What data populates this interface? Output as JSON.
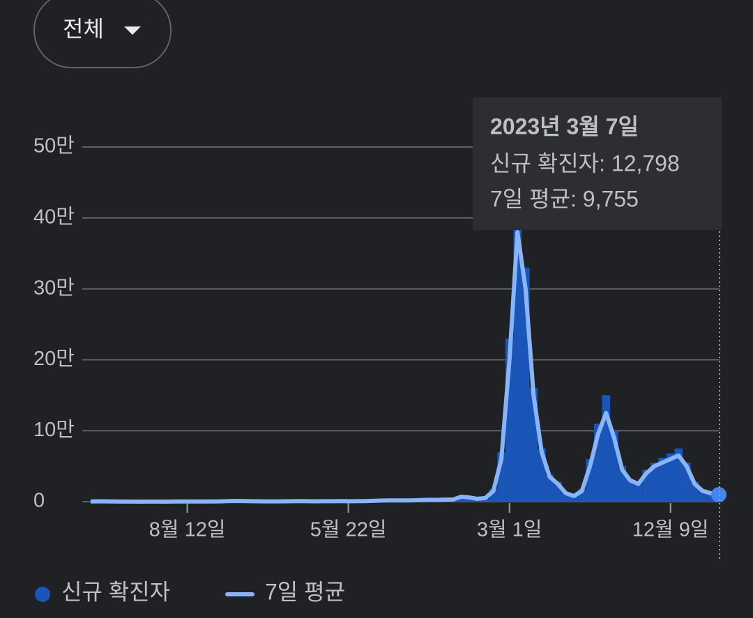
{
  "filter": {
    "label": "전체"
  },
  "chart_data": {
    "type": "bar-line",
    "categories": [
      null,
      null,
      null,
      null,
      null,
      null,
      null,
      null,
      null,
      null,
      null,
      null,
      "8월 12일",
      null,
      null,
      null,
      null,
      null,
      null,
      null,
      null,
      null,
      null,
      null,
      null,
      null,
      null,
      null,
      null,
      null,
      null,
      null,
      "5월 22일",
      null,
      null,
      null,
      null,
      null,
      null,
      null,
      null,
      null,
      null,
      null,
      null,
      null,
      null,
      null,
      null,
      null,
      null,
      null,
      "3월 1일",
      null,
      null,
      null,
      null,
      null,
      null,
      null,
      null,
      null,
      null,
      null,
      null,
      null,
      null,
      null,
      null,
      null,
      null,
      null,
      "12월 9일",
      null,
      null,
      null,
      null,
      null,
      null
    ],
    "series": [
      {
        "name": "신규 확진자",
        "color": "#1a56b8",
        "values": [
          300,
          600,
          400,
          200,
          100,
          50,
          40,
          60,
          50,
          40,
          50,
          300,
          150,
          200,
          150,
          200,
          400,
          900,
          1100,
          1000,
          600,
          500,
          400,
          400,
          500,
          600,
          700,
          600,
          500,
          600,
          600,
          700,
          600,
          700,
          800,
          1200,
          1600,
          1800,
          1700,
          1800,
          2000,
          2500,
          2800,
          2600,
          3000,
          3500,
          7500,
          7000,
          4500,
          4200,
          18000,
          70000,
          230000,
          410000,
          330000,
          160000,
          75000,
          38000,
          28000,
          13000,
          9000,
          18000,
          60000,
          110000,
          150000,
          100000,
          50000,
          32000,
          27000,
          45000,
          55000,
          62000,
          68000,
          75000,
          55000,
          28000,
          17000,
          13000,
          12798
        ]
      },
      {
        "name": "7일 평균",
        "color": "#8ab4f8",
        "values": [
          200,
          500,
          400,
          200,
          100,
          50,
          40,
          50,
          50,
          40,
          50,
          250,
          150,
          180,
          150,
          200,
          350,
          800,
          1000,
          900,
          600,
          500,
          400,
          400,
          450,
          550,
          650,
          600,
          500,
          550,
          600,
          650,
          600,
          650,
          750,
          1100,
          1500,
          1700,
          1650,
          1750,
          1900,
          2300,
          2600,
          2500,
          2800,
          3000,
          7000,
          6000,
          4000,
          5000,
          15000,
          60000,
          200000,
          380000,
          300000,
          150000,
          70000,
          35000,
          25000,
          12000,
          8000,
          15000,
          50000,
          95000,
          125000,
          90000,
          45000,
          30000,
          25000,
          40000,
          50000,
          55000,
          60000,
          65000,
          50000,
          25000,
          15000,
          12000,
          9755
        ]
      }
    ],
    "ylim": [
      0,
      500000
    ],
    "yticks": [
      0,
      {
        "value": 100000,
        "label": "10만"
      },
      {
        "value": 200000,
        "label": "20만"
      },
      {
        "value": 300000,
        "label": "30만"
      },
      {
        "value": 400000,
        "label": "40만"
      },
      {
        "value": 500000,
        "label": "50만"
      }
    ],
    "grid": true,
    "tooltip": {
      "title": "2023년 3월 7일",
      "lines": [
        "신규 확진자: 12,798",
        "7일 평균: 9,755"
      ]
    }
  }
}
